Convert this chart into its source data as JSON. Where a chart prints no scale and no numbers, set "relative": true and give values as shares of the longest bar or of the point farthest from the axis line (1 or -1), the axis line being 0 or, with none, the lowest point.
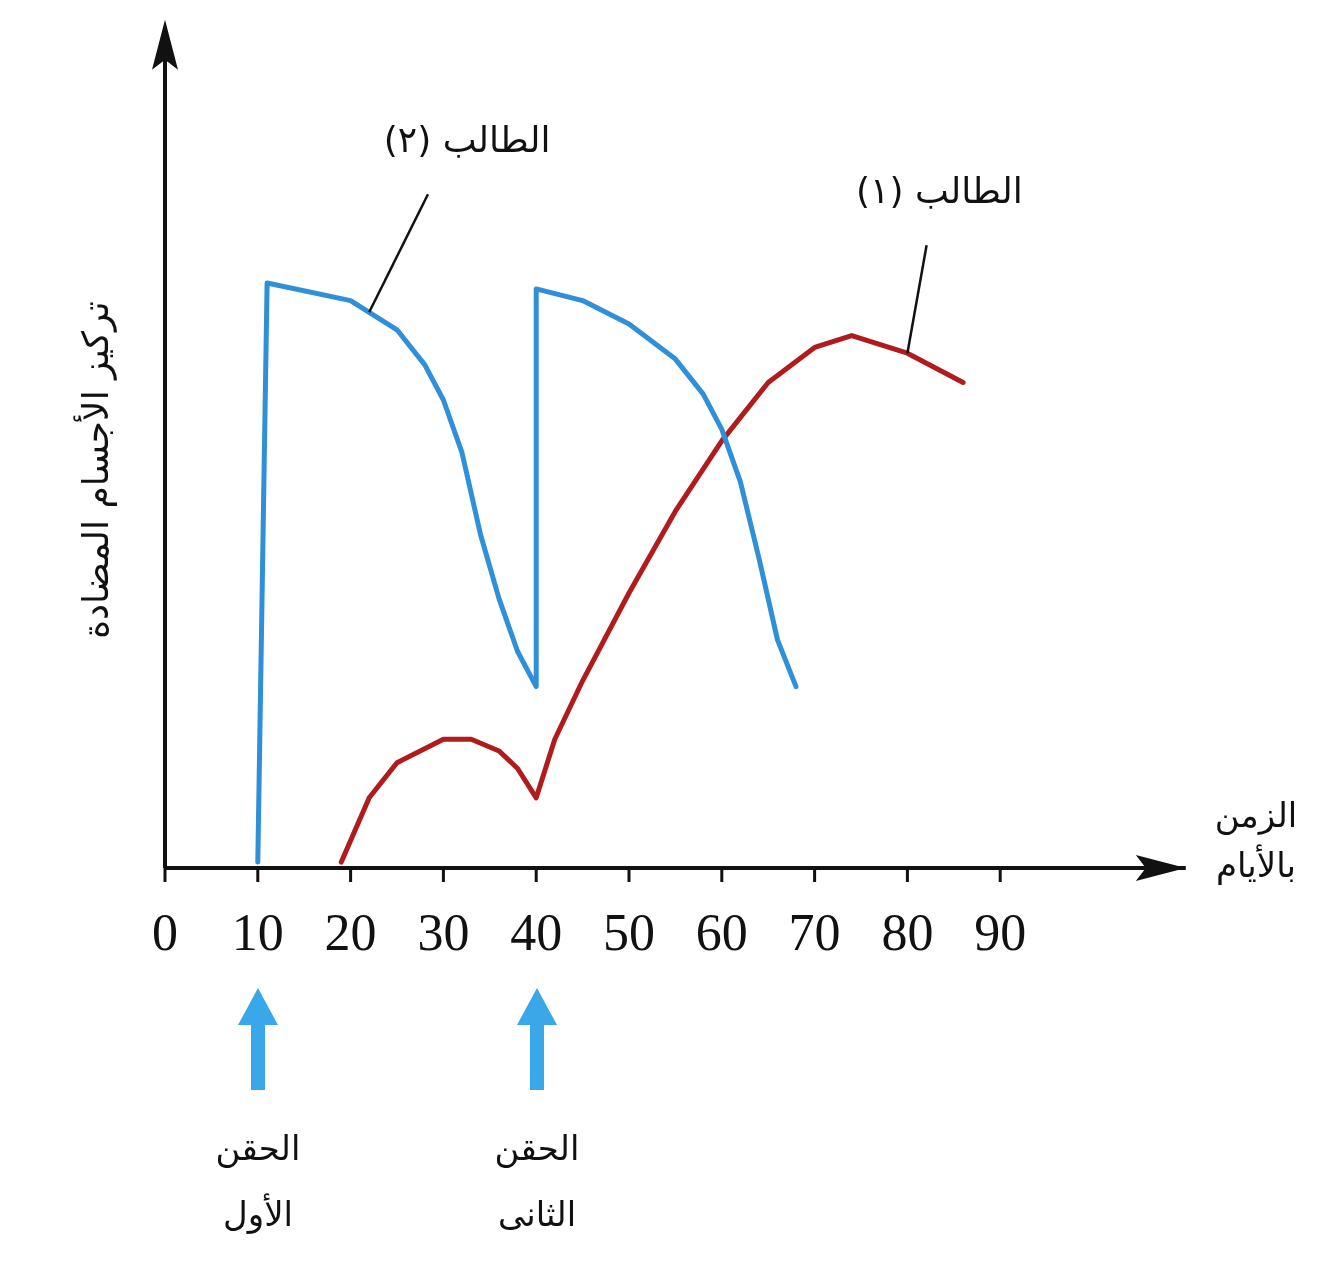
{
  "chart_data": {
    "type": "line",
    "relative": true,
    "xlabel": "الزمن بالأيام",
    "ylabel": "تركيز الأجسام المضادة",
    "xlim": [
      0,
      110
    ],
    "xticks": [
      0,
      10,
      20,
      30,
      40,
      50,
      60,
      70,
      80,
      90
    ],
    "series": [
      {
        "name": "الطالب (١)",
        "color": "#b01c1c",
        "x": [
          19,
          22,
          25,
          30,
          33,
          36,
          38,
          40,
          42,
          45,
          50,
          55,
          60,
          65,
          70,
          74,
          80,
          86
        ],
        "values": [
          0.01,
          0.12,
          0.18,
          0.22,
          0.22,
          0.2,
          0.17,
          0.12,
          0.22,
          0.32,
          0.47,
          0.61,
          0.73,
          0.83,
          0.89,
          0.91,
          0.88,
          0.83
        ]
      },
      {
        "name": "الطالب (٢)",
        "color": "#2f8fd8",
        "x": [
          10,
          11,
          20,
          22,
          25,
          28,
          30,
          32,
          34,
          36,
          38,
          40,
          40,
          45,
          50,
          55,
          58,
          60,
          62,
          64,
          66,
          68
        ],
        "values": [
          0.01,
          1.0,
          0.97,
          0.95,
          0.92,
          0.86,
          0.8,
          0.71,
          0.57,
          0.46,
          0.37,
          0.31,
          0.99,
          0.97,
          0.93,
          0.87,
          0.81,
          0.75,
          0.66,
          0.53,
          0.39,
          0.31
        ]
      }
    ],
    "annotations": [
      "الحقن الأول",
      "الحقن الثانى"
    ]
  }
}
